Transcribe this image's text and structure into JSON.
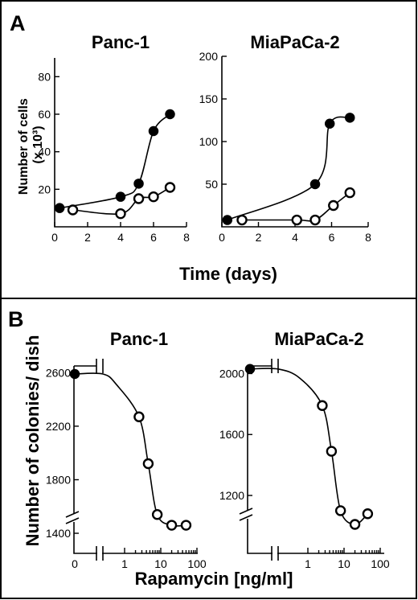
{
  "figure": {
    "panel_a": {
      "letter": "A",
      "ylabel_line1": "Number of cells",
      "ylabel_line2": "(x 10³)",
      "xlabel": "Time (days)"
    },
    "panel_b": {
      "letter": "B",
      "ylabel": "Number of colonies/ dish",
      "xlabel": "Rapamycin [ng/ml]"
    }
  },
  "chart_data": [
    {
      "id": "a-panc1",
      "type": "line",
      "title": "Panc-1",
      "xlabel": "Time (days)",
      "ylabel": "Number of cells (x 10³)",
      "xlim": [
        0,
        8
      ],
      "ylim": [
        0,
        90
      ],
      "xticks": [
        0,
        2,
        4,
        6,
        8
      ],
      "yticks": [
        20,
        40,
        60,
        80
      ],
      "series": [
        {
          "style": "filled",
          "x": [
            0.3,
            4,
            5.1,
            6,
            7
          ],
          "y": [
            10,
            16,
            23,
            51,
            60
          ]
        },
        {
          "style": "open",
          "x": [
            1.1,
            4,
            5.1,
            6,
            7
          ],
          "y": [
            9,
            7,
            15,
            16,
            21
          ]
        }
      ]
    },
    {
      "id": "a-miapaca2",
      "type": "line",
      "title": "MiaPaCa-2",
      "xlabel": "Time (days)",
      "ylabel": "Number of cells (x 10³)",
      "xlim": [
        0,
        8
      ],
      "ylim": [
        0,
        200
      ],
      "xticks": [
        0,
        2,
        4,
        6,
        8
      ],
      "yticks": [
        50,
        100,
        150,
        200
      ],
      "series": [
        {
          "style": "filled",
          "x": [
            0.3,
            5.1,
            5.9,
            7
          ],
          "y": [
            8,
            50,
            121,
            128
          ]
        },
        {
          "style": "open",
          "x": [
            1.1,
            4.1,
            5.1,
            6.1,
            7
          ],
          "y": [
            8,
            8,
            8,
            25,
            40
          ]
        }
      ]
    },
    {
      "id": "b-panc1",
      "type": "line",
      "title": "Panc-1",
      "xlabel": "Rapamycin [ng/ml]",
      "ylabel": "Number of colonies/ dish",
      "xscale": "log with axis break after 0",
      "xticklabels": [
        "0",
        "1",
        "10",
        "100"
      ],
      "yticks": [
        1400,
        1800,
        2200,
        2600
      ],
      "ylim": [
        1250,
        2650
      ],
      "series": [
        {
          "style": "filled",
          "x": [
            0
          ],
          "y": [
            2590
          ]
        },
        {
          "style": "open",
          "x": [
            2.5,
            4.5,
            8,
            20,
            50
          ],
          "y": [
            2270,
            1920,
            1540,
            1460,
            1460
          ]
        }
      ]
    },
    {
      "id": "b-miapaca2",
      "type": "line",
      "title": "MiaPaCa-2",
      "xlabel": "Rapamycin [ng/ml]",
      "ylabel": "Number of colonies/ dish",
      "xscale": "log with axis break after 0",
      "xticklabels": [
        "1",
        "10",
        "100"
      ],
      "yticks": [
        1200,
        1600,
        2000
      ],
      "ylim": [
        820,
        2050
      ],
      "series": [
        {
          "style": "filled",
          "x": [
            0
          ],
          "y": [
            2030
          ]
        },
        {
          "style": "open",
          "x": [
            2.5,
            4.5,
            8,
            20,
            45
          ],
          "y": [
            1790,
            1490,
            1100,
            1010,
            1080
          ]
        }
      ]
    }
  ]
}
